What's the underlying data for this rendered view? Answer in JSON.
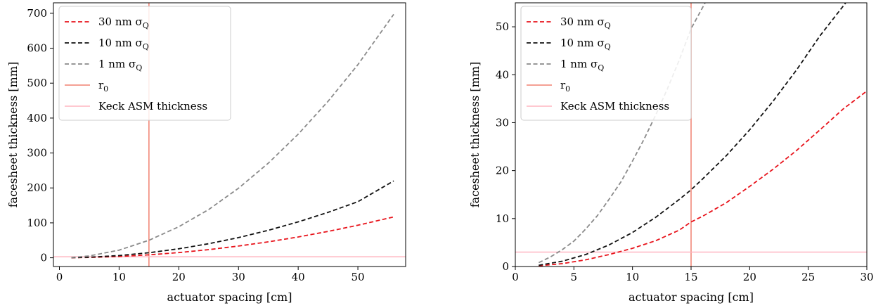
{
  "chart_data": [
    {
      "type": "line",
      "xlabel": "actuator spacing [cm]",
      "ylabel": "facesheet thickness [mm]",
      "xlim": [
        -1,
        58
      ],
      "ylim": [
        -25,
        730
      ],
      "xticks": [
        "0",
        "10",
        "20",
        "30",
        "40",
        "50"
      ],
      "yticks": [
        "0",
        "100",
        "200",
        "300",
        "400",
        "500",
        "600",
        "700"
      ],
      "xtick_values": [
        0,
        10,
        20,
        30,
        40,
        50
      ],
      "ytick_values": [
        0,
        100,
        200,
        300,
        400,
        500,
        600,
        700
      ],
      "grid": false,
      "legend_position": "top-left",
      "series": [
        {
          "name": "30 nm σ",
          "subscript": "Q",
          "color": "#e8141c",
          "style": "dashed",
          "x": [
            2,
            5,
            10,
            15,
            20,
            25,
            30,
            35,
            40,
            45,
            50,
            56
          ],
          "y": [
            0.15,
            0.93,
            3.71,
            8.4,
            14.9,
            23.3,
            33.5,
            45.6,
            59.6,
            75.4,
            93.1,
            117
          ]
        },
        {
          "name": "10 nm σ",
          "subscript": "Q",
          "color": "#111111",
          "style": "dashed",
          "x": [
            2,
            5,
            10,
            15,
            20,
            25,
            30,
            35,
            40,
            45,
            50,
            56
          ],
          "y": [
            0.27,
            1.6,
            6.4,
            14.5,
            25.7,
            40.2,
            57.8,
            78.7,
            102.8,
            130.1,
            160.6,
            220
          ]
        },
        {
          "name": "1 nm σ",
          "subscript": "Q",
          "color": "#8a8a8a",
          "style": "dashed",
          "x": [
            2,
            5,
            10,
            15,
            20,
            25,
            30,
            35,
            40,
            45,
            50,
            56
          ],
          "y": [
            0.8,
            5.3,
            22,
            50,
            89,
            138,
            199,
            271,
            354,
            448,
            553,
            697
          ]
        },
        {
          "name": "r",
          "subscript": "0",
          "color": "#f08070",
          "style": "vline",
          "x": 15
        },
        {
          "name": "Keck ASM thickness",
          "color": "#ffb6c1",
          "style": "hline",
          "y": 3
        }
      ]
    },
    {
      "type": "line",
      "xlabel": "actuator spacing [cm]",
      "ylabel": "facesheet thickness [mm]",
      "xlim": [
        0,
        30
      ],
      "ylim": [
        0,
        55
      ],
      "xticks": [
        "0",
        "5",
        "10",
        "15",
        "20",
        "25",
        "30"
      ],
      "yticks": [
        "0",
        "10",
        "20",
        "30",
        "40",
        "50"
      ],
      "xtick_values": [
        0,
        5,
        10,
        15,
        20,
        25,
        30
      ],
      "ytick_values": [
        0,
        10,
        20,
        30,
        40,
        50
      ],
      "grid": false,
      "legend_position": "top-left",
      "series": [
        {
          "name": "30 nm σ",
          "subscript": "Q",
          "color": "#e8141c",
          "style": "dashed",
          "x": [
            2,
            4,
            6,
            8,
            10,
            12,
            14,
            15,
            16,
            18,
            20,
            22,
            24,
            26,
            28,
            30
          ],
          "y": [
            0.15,
            0.6,
            1.4,
            2.5,
            3.8,
            5.4,
            7.6,
            9.3,
            10.5,
            13.3,
            16.7,
            20.3,
            24.2,
            28.5,
            32.9,
            36.6
          ]
        },
        {
          "name": "10 nm σ",
          "subscript": "Q",
          "color": "#111111",
          "style": "dashed",
          "x": [
            2,
            4,
            6,
            8,
            10,
            12,
            14,
            15,
            16,
            18,
            20,
            22,
            24,
            26,
            28.2
          ],
          "y": [
            0.27,
            1.1,
            2.5,
            4.5,
            7.1,
            10.3,
            14.0,
            16.0,
            18.3,
            23.1,
            28.5,
            34.5,
            41.0,
            48.1,
            55
          ]
        },
        {
          "name": "1 nm σ",
          "subscript": "Q",
          "color": "#8a8a8a",
          "style": "dashed",
          "x": [
            2,
            3,
            4,
            5,
            6,
            7,
            8,
            9,
            10,
            11,
            12,
            13,
            14,
            15,
            16.2
          ],
          "y": [
            0.8,
            2.0,
            3.5,
            5.3,
            7.8,
            10.6,
            14.0,
            17.6,
            22.0,
            26.6,
            31.7,
            37.2,
            43.1,
            49.6,
            55
          ]
        },
        {
          "name": "r",
          "subscript": "0",
          "color": "#f08070",
          "style": "vline",
          "x": 15
        },
        {
          "name": "Keck ASM thickness",
          "color": "#ffb6c1",
          "style": "hline",
          "y": 3
        }
      ]
    }
  ]
}
